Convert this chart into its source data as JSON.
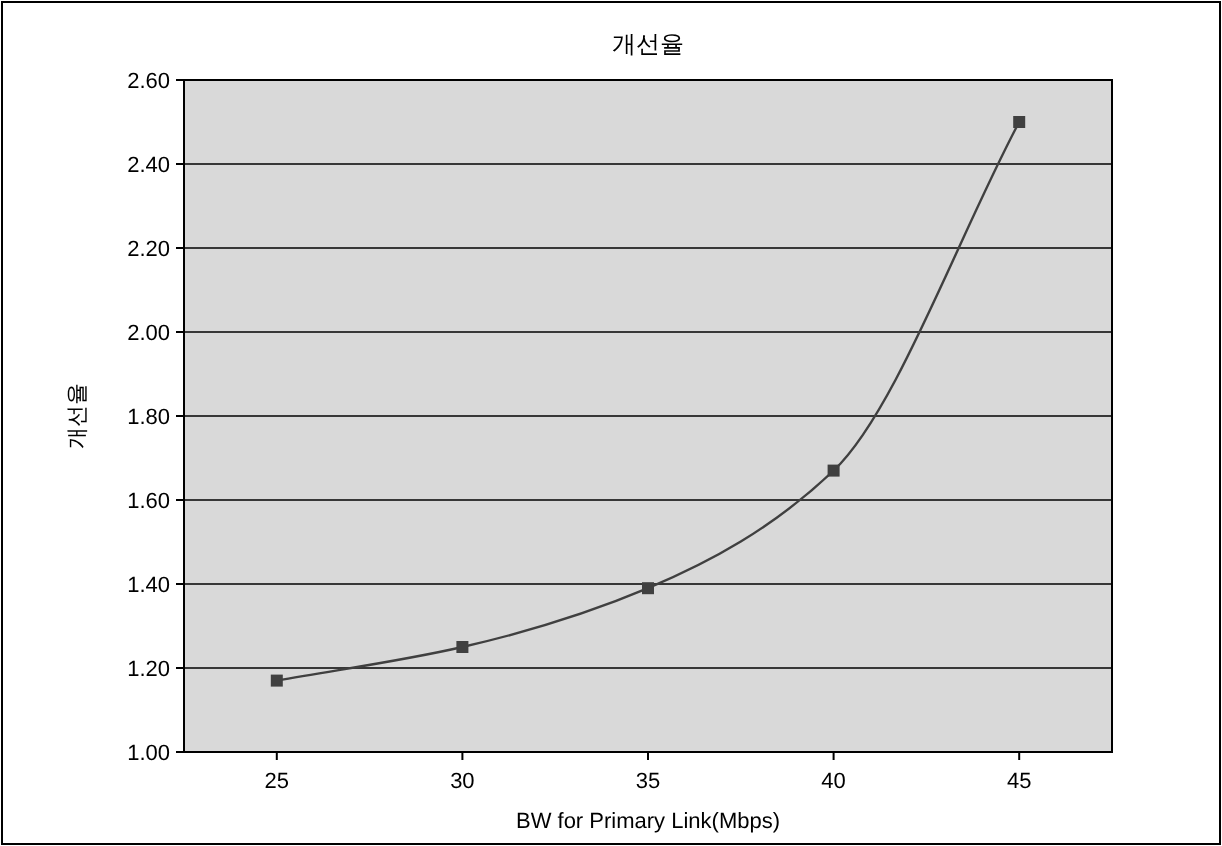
{
  "chart_data": {
    "type": "line",
    "title": "개선율",
    "xlabel": "BW for Primary Link(Mbps)",
    "ylabel": "개선율",
    "categories": [
      "25",
      "30",
      "35",
      "40",
      "45"
    ],
    "series": [
      {
        "color": "#404040",
        "values": [
          1.17,
          1.25,
          1.39,
          1.67,
          2.5
        ]
      }
    ],
    "ylim": [
      1,
      2.6
    ],
    "yticks": [
      {
        "value": 1,
        "label": "1.00"
      },
      {
        "value": 1.2,
        "label": "1.20"
      },
      {
        "value": 1.4,
        "label": "1.40"
      },
      {
        "value": 1.6,
        "label": "1.60"
      },
      {
        "value": 1.8,
        "label": "1.80"
      },
      {
        "value": 2,
        "label": "2.00"
      },
      {
        "value": 2.2,
        "label": "2.20"
      },
      {
        "value": 2.4,
        "label": "2.40"
      },
      {
        "value": 2.6,
        "label": "2.60"
      }
    ],
    "grid": "y",
    "marker": "square",
    "line_style": "solid"
  }
}
